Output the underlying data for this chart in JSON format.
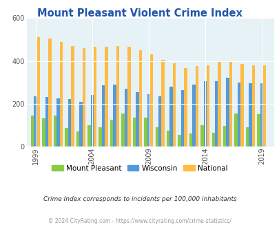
{
  "title": "Mount Pleasant Violent Crime Index",
  "year_data": [
    [
      1999,
      145,
      235,
      510
    ],
    [
      2000,
      130,
      230,
      505
    ],
    [
      2001,
      145,
      225,
      490
    ],
    [
      2002,
      85,
      220,
      470
    ],
    [
      2003,
      70,
      210,
      460
    ],
    [
      2004,
      100,
      240,
      465
    ],
    [
      2005,
      90,
      285,
      465
    ],
    [
      2006,
      125,
      290,
      470
    ],
    [
      2007,
      155,
      270,
      465
    ],
    [
      2008,
      135,
      255,
      450
    ],
    [
      2009,
      135,
      245,
      430
    ],
    [
      2010,
      90,
      235,
      405
    ],
    [
      2011,
      75,
      280,
      390
    ],
    [
      2012,
      55,
      265,
      365
    ],
    [
      2013,
      60,
      290,
      375
    ],
    [
      2014,
      100,
      305,
      380
    ],
    [
      2015,
      65,
      305,
      395
    ],
    [
      2016,
      95,
      320,
      400
    ],
    [
      2017,
      155,
      300,
      385
    ],
    [
      2018,
      90,
      295,
      380
    ],
    [
      2019,
      150,
      295,
      380
    ]
  ],
  "colors": {
    "mount_pleasant": "#88cc44",
    "wisconsin": "#5599dd",
    "national": "#ffbb44"
  },
  "background_color": "#e6f2f5",
  "ylim": [
    0,
    600
  ],
  "yticks": [
    0,
    200,
    400,
    600
  ],
  "xtick_years": [
    1999,
    2004,
    2009,
    2014,
    2019
  ],
  "legend_labels": [
    "Mount Pleasant",
    "Wisconsin",
    "National"
  ],
  "title_color": "#2255aa",
  "footnote1": "Crime Index corresponds to incidents per 100,000 inhabitants",
  "footnote2": "© 2024 CityRating.com - https://www.cityrating.com/crime-statistics/",
  "footnote1_color": "#333333",
  "footnote2_color": "#999999"
}
